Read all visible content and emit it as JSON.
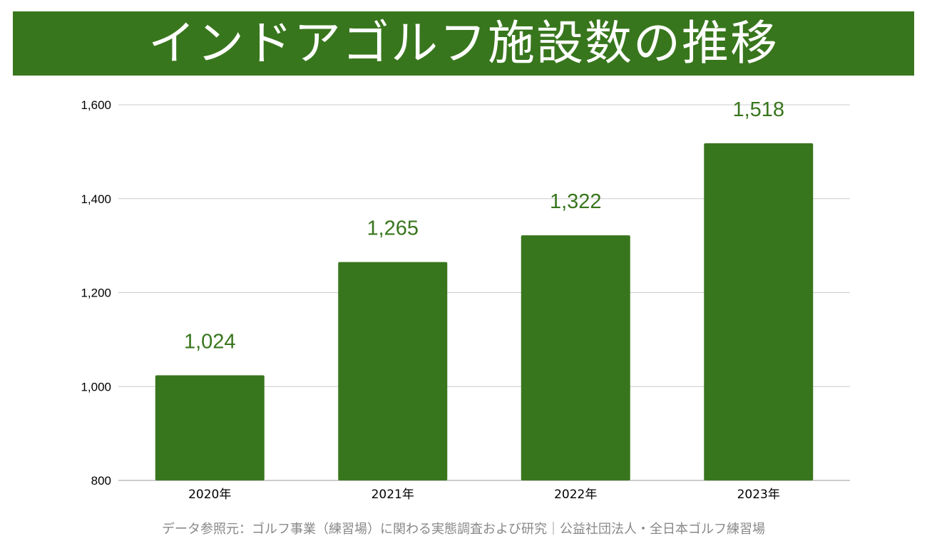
{
  "title": "インドアゴルフ施設数の推移",
  "source": "データ参照元：ゴルフ事業（練習場）に関わる実態調査および研究｜公益社団法人・全日本ゴルフ練習場",
  "colors": {
    "bar": "#38761d",
    "data_label": "#38761d",
    "title_bg": "#38761d",
    "title_text": "#ffffff",
    "grid": "#cccccc",
    "axis_text": "#000000",
    "source_text": "#888888"
  },
  "chart_data": {
    "type": "bar",
    "title": "インドアゴルフ施設数の推移",
    "categories": [
      "2020年",
      "2021年",
      "2022年",
      "2023年"
    ],
    "values": [
      1024,
      1265,
      1322,
      1518
    ],
    "data_labels": [
      "1,024",
      "1,265",
      "1,322",
      "1,518"
    ],
    "xlabel": "",
    "ylabel": "",
    "ylim": [
      800,
      1600
    ],
    "yticks": [
      800,
      1000,
      1200,
      1400,
      1600
    ],
    "ytick_labels": [
      "800",
      "1,000",
      "1,200",
      "1,400",
      "1,600"
    ],
    "grid": true,
    "legend": "none"
  }
}
